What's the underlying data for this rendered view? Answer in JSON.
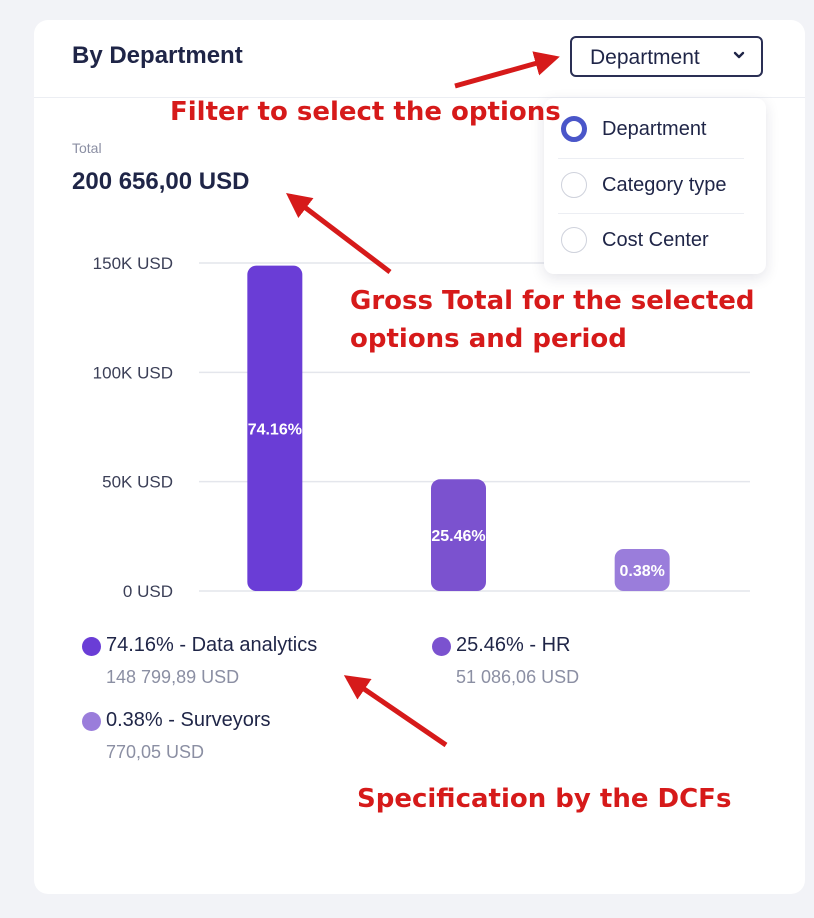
{
  "card": {
    "title": "By Department",
    "total_caption": "Total",
    "total_value": "200 656,00 USD"
  },
  "filter": {
    "selected_label": "Department",
    "options": [
      {
        "label": "Department",
        "checked": true
      },
      {
        "label": "Category type",
        "checked": false
      },
      {
        "label": "Cost Center",
        "checked": false
      }
    ]
  },
  "chart_data": {
    "type": "bar",
    "categories": [
      "Data analytics",
      "HR",
      "Surveyors"
    ],
    "values": [
      148799.89,
      51086.06,
      770.05
    ],
    "bar_labels": [
      "74.16%",
      "25.46%",
      "0.38%"
    ],
    "colors": [
      "#6a3dd6",
      "#7b52cf",
      "#9a7ddb"
    ],
    "ylim": [
      0,
      150000
    ],
    "yticks": [
      {
        "value": 0,
        "label": "0 USD"
      },
      {
        "value": 50000,
        "label": "50K USD"
      },
      {
        "value": 100000,
        "label": "100K USD"
      },
      {
        "value": 150000,
        "label": "150K USD"
      }
    ],
    "grid": true
  },
  "legend": [
    {
      "label": "74.16% - Data analytics",
      "amount": "148 799,89 USD",
      "color": "#6a3dd6"
    },
    {
      "label": "25.46% - HR",
      "amount": "51 086,06 USD",
      "color": "#7b52cf"
    },
    {
      "label": "0.38% - Surveyors",
      "amount": "770,05 USD",
      "color": "#9a7ddb"
    }
  ],
  "annotations": {
    "filter_note": "Filter to select the options",
    "total_note_line1": "Gross Total for the selected",
    "total_note_line2": "options and period",
    "legend_note": "Specification by the DCFs",
    "color": "#d61a1a"
  }
}
